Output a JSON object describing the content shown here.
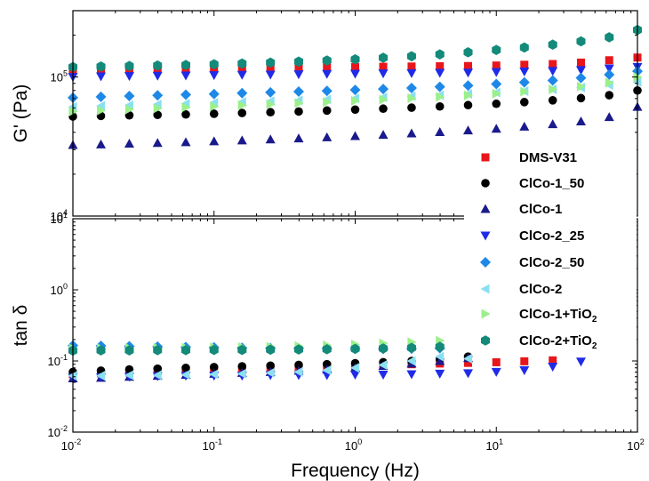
{
  "chart_data": {
    "type": "scatter",
    "x_label": "Frequency (Hz)",
    "x_scale": "log",
    "x_range": [
      0.01,
      100
    ],
    "x_ticks": [
      {
        "value": 0.01,
        "base": "10",
        "exp": "-2"
      },
      {
        "value": 0.1,
        "base": "10",
        "exp": "-1"
      },
      {
        "value": 1,
        "base": "10",
        "exp": "0"
      },
      {
        "value": 10,
        "base": "10",
        "exp": "1"
      },
      {
        "value": 100,
        "base": "10",
        "exp": "2"
      }
    ],
    "x": [
      0.01,
      0.0158,
      0.0251,
      0.0398,
      0.0631,
      0.1,
      0.158,
      0.251,
      0.398,
      0.631,
      1,
      1.58,
      2.51,
      3.98,
      6.31,
      10,
      15.8,
      25.1,
      39.8,
      63.1,
      100
    ],
    "legend_position": "right",
    "panels": [
      {
        "id": "top",
        "y_label": "G' (Pa)",
        "y_scale": "log",
        "y_range": [
          10000,
          300000
        ],
        "y_ticks": [
          {
            "value": 10000,
            "base": "10",
            "exp": "4"
          },
          {
            "value": 100000,
            "base": "10",
            "exp": "5"
          }
        ],
        "series": [
          {
            "name": "DMS-V31",
            "values": [
              113000,
              113500,
              114000,
              114500,
              115000,
              115500,
              116000,
              116500,
              117000,
              117500,
              118000,
              118500,
              119000,
              119500,
              120000,
              121000,
              122500,
              124000,
              127000,
              132000,
              138000
            ]
          },
          {
            "name": "ClCo-1_50",
            "values": [
              52000,
              52500,
              53000,
              53400,
              53800,
              54400,
              55100,
              55800,
              56500,
              57400,
              58300,
              59200,
              60200,
              61400,
              62800,
              64200,
              66000,
              68000,
              70500,
              74000,
              80000
            ]
          },
          {
            "name": "ClCo-1",
            "values": [
              32500,
              32800,
              33200,
              33600,
              34000,
              34500,
              35000,
              35600,
              36200,
              36900,
              37600,
              38400,
              39300,
              40200,
              41300,
              42500,
              44000,
              45800,
              48000,
              51500,
              61000
            ]
          },
          {
            "name": "ClCo-2_25",
            "values": [
              100000,
              101000,
              101500,
              102000,
              102500,
              103000,
              103500,
              104000,
              104500,
              105000,
              105500,
              106000,
              106500,
              107000,
              107500,
              108500,
              109500,
              110500,
              112000,
              115000,
              118000
            ]
          },
          {
            "name": "ClCo-2_50",
            "values": [
              71000,
              72000,
              73000,
              73800,
              74600,
              75500,
              76500,
              77500,
              78500,
              79500,
              80800,
              82000,
              83400,
              85000,
              86800,
              89000,
              91500,
              94500,
              98500,
              104000,
              110000
            ]
          },
          {
            "name": "ClCo-2",
            "values": [
              61000,
              62000,
              62800,
              63600,
              64400,
              65300,
              66200,
              67100,
              68100,
              69100,
              70200,
              71400,
              72700,
              74100,
              75600,
              77300,
              79200,
              81500,
              84000,
              87500,
              92000
            ]
          },
          {
            "name": "ClCo-1+TiO",
            "name_sub": "2",
            "values": [
              56500,
              57500,
              58500,
              59500,
              60500,
              61500,
              62600,
              63700,
              64900,
              66100,
              67400,
              68800,
              70300,
              72000,
              73800,
              76000,
              78500,
              81500,
              85500,
              91000,
              100000
            ]
          },
          {
            "name": "ClCo-2+TiO",
            "name_sub": "2",
            "values": [
              118000,
              119000,
              120000,
              121000,
              122000,
              123500,
              125000,
              127000,
              129000,
              131500,
              134000,
              137500,
              141000,
              145500,
              150500,
              156500,
              163000,
              171000,
              180500,
              193000,
              218000
            ]
          }
        ]
      },
      {
        "id": "bottom",
        "y_label": "tan δ",
        "y_scale": "log",
        "y_range": [
          0.01,
          10
        ],
        "y_ticks": [
          {
            "value": 0.01,
            "base": "10",
            "exp": "-2"
          },
          {
            "value": 0.1,
            "base": "10",
            "exp": "-1"
          },
          {
            "value": 1,
            "base": "10",
            "exp": "0"
          },
          {
            "value": 10,
            "base": "10",
            "exp": "1"
          }
        ],
        "series": [
          {
            "name": "DMS-V31",
            "values": [
              0.065,
              0.067,
              0.069,
              0.072,
              0.074,
              0.076,
              0.078,
              0.08,
              0.082,
              0.084,
              0.086,
              0.088,
              0.09,
              0.092,
              0.094,
              0.096,
              0.099,
              0.102,
              null,
              null,
              null
            ]
          },
          {
            "name": "ClCo-1_50",
            "values": [
              0.07,
              0.073,
              0.076,
              0.078,
              0.08,
              0.082,
              0.084,
              0.086,
              0.088,
              0.09,
              0.093,
              0.096,
              0.1,
              0.106,
              0.115,
              null,
              null,
              null,
              null,
              null,
              null
            ]
          },
          {
            "name": "ClCo-1",
            "values": [
              0.057,
              0.058,
              0.06,
              0.062,
              0.064,
              0.066,
              0.068,
              0.07,
              0.073,
              0.076,
              0.08,
              0.085,
              0.092,
              0.1,
              0.11,
              null,
              null,
              null,
              null,
              null,
              null
            ]
          },
          {
            "name": "ClCo-2_25",
            "values": [
              0.058,
              0.059,
              0.06,
              0.061,
              0.062,
              0.062,
              0.062,
              0.063,
              0.063,
              0.063,
              0.064,
              0.064,
              0.065,
              0.066,
              0.067,
              0.07,
              0.074,
              0.083,
              0.098,
              null,
              null
            ]
          },
          {
            "name": "ClCo-2_50",
            "values": [
              0.165,
              0.163,
              0.161,
              0.159,
              0.157,
              0.155,
              0.153,
              0.151,
              0.15,
              0.149,
              0.148,
              0.148,
              0.149,
              0.151,
              null,
              null,
              null,
              null,
              null,
              null,
              null
            ]
          },
          {
            "name": "ClCo-2",
            "values": [
              0.062,
              0.062,
              0.063,
              0.063,
              0.064,
              0.065,
              0.066,
              0.068,
              0.07,
              0.074,
              0.08,
              0.088,
              0.1,
              0.115,
              0.108,
              null,
              null,
              null,
              null,
              null,
              null
            ]
          },
          {
            "name": "ClCo-1+TiO",
            "name_sub": "2",
            "values": [
              0.15,
              0.151,
              0.152,
              0.153,
              0.154,
              0.155,
              0.157,
              0.159,
              0.162,
              0.166,
              0.171,
              0.177,
              0.184,
              0.193,
              null,
              null,
              null,
              null,
              null,
              null,
              null
            ]
          },
          {
            "name": "ClCo-2+TiO",
            "name_sub": "2",
            "values": [
              0.14,
              0.141,
              0.141,
              0.142,
              0.142,
              0.143,
              0.143,
              0.144,
              0.145,
              0.146,
              0.148,
              0.15,
              0.153,
              0.158,
              null,
              null,
              null,
              null,
              null,
              null,
              null
            ]
          }
        ]
      }
    ],
    "series_styles": [
      {
        "name": "DMS-V31",
        "marker": "square",
        "color": "#e8161b"
      },
      {
        "name": "ClCo-1_50",
        "marker": "circle",
        "color": "#000000"
      },
      {
        "name": "ClCo-1",
        "marker": "triangle-up",
        "color": "#1a1a8c"
      },
      {
        "name": "ClCo-2_25",
        "marker": "triangle-down",
        "color": "#1f2be8"
      },
      {
        "name": "ClCo-2_50",
        "marker": "diamond",
        "color": "#1e88e8"
      },
      {
        "name": "ClCo-2",
        "marker": "triangle-left",
        "color": "#8be0f0"
      },
      {
        "name": "ClCo-1+TiO",
        "marker": "triangle-right",
        "color": "#9bf08a"
      },
      {
        "name": "ClCo-2+TiO",
        "marker": "hexagon",
        "color": "#138a7a"
      }
    ]
  }
}
